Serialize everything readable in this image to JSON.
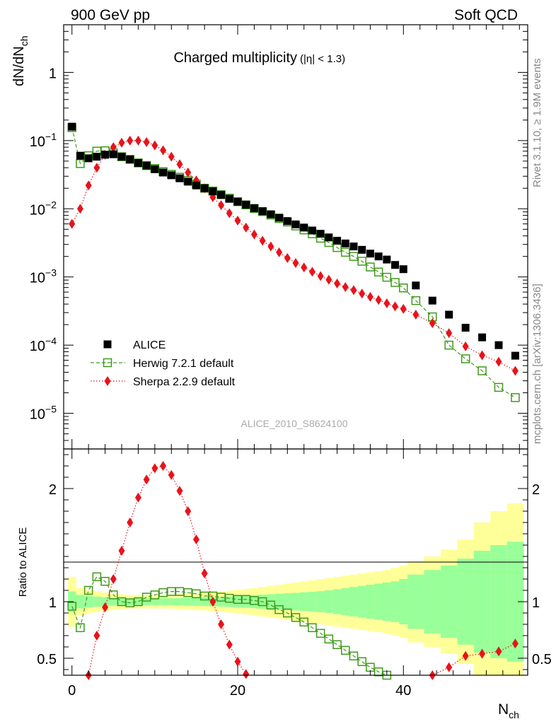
{
  "header": {
    "energy_label": "900 GeV pp",
    "process_label": "Soft QCD"
  },
  "side_labels": {
    "rivet": "Rivet 3.1.10, ≥ 1.9M events",
    "mcplots": "mcplots.cern.ch [arXiv:1306.3436]"
  },
  "chart_data": [
    {
      "type": "scatter",
      "panel": "main",
      "title": "Charged multiplicity",
      "title_cut": "(|η| < 1.3)",
      "ylabel": "dN/dN",
      "ylabel_sub": "ch",
      "yscale": "log",
      "ylim": [
        3e-06,
        5
      ],
      "xlim": [
        -1,
        55
      ],
      "y_tick_labels": [
        {
          "value": 1,
          "base": "1",
          "exp": ""
        },
        {
          "value": 0.1,
          "base": "10",
          "exp": "−1"
        },
        {
          "value": 0.01,
          "base": "10",
          "exp": "−2"
        },
        {
          "value": 0.001,
          "base": "10",
          "exp": "−3"
        },
        {
          "value": 0.0001,
          "base": "10",
          "exp": "−4"
        },
        {
          "value": 1e-05,
          "base": "10",
          "exp": "−5"
        }
      ],
      "watermark": "ALICE_2010_S8624100",
      "legend_position": "bottom-left",
      "series": [
        {
          "name": "ALICE",
          "color": "#000000",
          "marker": "filled-square",
          "x": [
            0,
            1,
            2,
            3,
            4,
            5,
            6,
            7,
            8,
            9,
            10,
            11,
            12,
            13,
            14,
            15,
            16,
            17,
            18,
            19,
            20,
            21,
            22,
            23,
            24,
            25,
            26,
            27,
            28,
            29,
            30,
            31,
            32,
            33,
            34,
            35,
            36,
            37,
            38,
            39,
            40,
            41.5,
            43.5,
            45.5,
            47.5,
            49.5,
            51.5,
            53.5
          ],
          "y": [
            0.16,
            0.06,
            0.055,
            0.058,
            0.062,
            0.063,
            0.058,
            0.053,
            0.047,
            0.043,
            0.038,
            0.034,
            0.031,
            0.028,
            0.025,
            0.022,
            0.02,
            0.018,
            0.016,
            0.014,
            0.0127,
            0.0115,
            0.0102,
            0.0092,
            0.0083,
            0.0074,
            0.0066,
            0.0059,
            0.0053,
            0.0048,
            0.0043,
            0.0038,
            0.0034,
            0.0031,
            0.0028,
            0.0025,
            0.0022,
            0.002,
            0.0018,
            0.0015,
            0.0013,
            0.00075,
            0.00045,
            0.00028,
            0.00018,
            0.00013,
            0.0001,
            7e-05
          ]
        },
        {
          "name": "Herwig 7.2.1 default",
          "color": "#3f9a1a",
          "marker": "open-square",
          "line": "dashed",
          "x": [
            0,
            1,
            2,
            3,
            4,
            5,
            6,
            7,
            8,
            9,
            10,
            11,
            12,
            13,
            14,
            15,
            16,
            17,
            18,
            19,
            20,
            21,
            22,
            23,
            24,
            25,
            26,
            27,
            28,
            29,
            30,
            31,
            32,
            33,
            34,
            35,
            36,
            37,
            38,
            39,
            40,
            41.5,
            43.5,
            45.5,
            47.5,
            49.5,
            51.5,
            53.5
          ],
          "y": [
            0.155,
            0.046,
            0.06,
            0.07,
            0.071,
            0.066,
            0.058,
            0.053,
            0.047,
            0.043,
            0.039,
            0.035,
            0.032,
            0.029,
            0.026,
            0.023,
            0.02,
            0.0182,
            0.0161,
            0.0143,
            0.0127,
            0.0114,
            0.0101,
            0.0091,
            0.0081,
            0.0072,
            0.0064,
            0.0056,
            0.0049,
            0.0043,
            0.0037,
            0.0032,
            0.0027,
            0.0023,
            0.002,
            0.0017,
            0.0014,
            0.00118,
            0.00099,
            0.00083,
            0.00069,
            0.00045,
            0.00026,
            0.0001,
            6.3e-05,
            4.2e-05,
            2.4e-05,
            1.7e-05
          ]
        },
        {
          "name": "Sherpa 2.2.9 default",
          "color": "#e8131a",
          "marker": "filled-diamond",
          "line": "dotted",
          "x": [
            0,
            1,
            2,
            3,
            4,
            5,
            6,
            7,
            8,
            9,
            10,
            11,
            12,
            13,
            14,
            15,
            16,
            17,
            18,
            19,
            20,
            21,
            22,
            23,
            24,
            25,
            26,
            27,
            28,
            29,
            30,
            31,
            32,
            33,
            34,
            35,
            36,
            37,
            38,
            39,
            40,
            41.5,
            43.5,
            45.5,
            47.5,
            49.5,
            51.5,
            53.5
          ],
          "y": [
            0.006,
            0.01,
            0.022,
            0.04,
            0.062,
            0.08,
            0.093,
            0.1,
            0.1,
            0.095,
            0.085,
            0.072,
            0.058,
            0.045,
            0.034,
            0.026,
            0.02,
            0.0148,
            0.0113,
            0.0086,
            0.0067,
            0.0053,
            0.0042,
            0.0034,
            0.0028,
            0.0023,
            0.0019,
            0.0016,
            0.00138,
            0.00119,
            0.00103,
            0.00091,
            0.0008,
            0.00071,
            0.00064,
            0.00057,
            0.00051,
            0.00046,
            0.00041,
            0.00037,
            0.00034,
            0.00028,
            0.00021,
            0.00015,
            9.6e-05,
            7.1e-05,
            5.7e-05,
            4.2e-05
          ]
        }
      ]
    },
    {
      "type": "scatter",
      "panel": "ratio",
      "ylabel": "Ratio to ALICE",
      "xlabel": "N",
      "xlabel_sub": "ch",
      "ylim": [
        0.35,
        2.35
      ],
      "xlim": [
        -1,
        55
      ],
      "x_ticks": [
        0,
        20,
        40
      ],
      "y_ticks": [
        0.5,
        1,
        2
      ],
      "bands": {
        "x_edges": [
          -0.5,
          0.5,
          1.5,
          2.5,
          3.5,
          4.5,
          5.5,
          6.5,
          7.5,
          8.5,
          9.5,
          10.5,
          11.5,
          12.5,
          13.5,
          14.5,
          15.5,
          16.5,
          17.5,
          18.5,
          19.5,
          20.5,
          21.5,
          22.5,
          23.5,
          24.5,
          25.5,
          26.5,
          27.5,
          28.5,
          29.5,
          30.5,
          31.5,
          32.5,
          33.5,
          34.5,
          35.5,
          36.5,
          37.5,
          38.5,
          39.5,
          40.5,
          42.5,
          44.5,
          46.5,
          48.5,
          50.5,
          52.5,
          54.5
        ],
        "inner_halfwidth": [
          0.09,
          0.06,
          0.05,
          0.045,
          0.04,
          0.035,
          0.032,
          0.03,
          0.03,
          0.03,
          0.03,
          0.03,
          0.03,
          0.032,
          0.034,
          0.036,
          0.038,
          0.04,
          0.043,
          0.046,
          0.05,
          0.054,
          0.058,
          0.062,
          0.066,
          0.07,
          0.074,
          0.078,
          0.083,
          0.088,
          0.093,
          0.1,
          0.11,
          0.12,
          0.13,
          0.14,
          0.15,
          0.16,
          0.17,
          0.18,
          0.2,
          0.24,
          0.28,
          0.32,
          0.38,
          0.45,
          0.5,
          0.53
        ],
        "outer_halfwidth": [
          0.22,
          0.12,
          0.1,
          0.09,
          0.08,
          0.07,
          0.065,
          0.06,
          0.06,
          0.06,
          0.06,
          0.06,
          0.062,
          0.066,
          0.07,
          0.074,
          0.078,
          0.083,
          0.09,
          0.097,
          0.105,
          0.113,
          0.12,
          0.13,
          0.14,
          0.15,
          0.16,
          0.17,
          0.18,
          0.19,
          0.2,
          0.21,
          0.22,
          0.23,
          0.24,
          0.25,
          0.26,
          0.27,
          0.28,
          0.3,
          0.32,
          0.36,
          0.4,
          0.46,
          0.55,
          0.7,
          0.8,
          0.87
        ]
      },
      "series": [
        {
          "name": "Herwig 7.2.1 default",
          "color": "#3f9a1a",
          "x": [
            0,
            1,
            2,
            3,
            4,
            5,
            6,
            7,
            8,
            9,
            10,
            11,
            12,
            13,
            14,
            15,
            16,
            17,
            18,
            19,
            20,
            21,
            22,
            23,
            24,
            25,
            26,
            27,
            28,
            29,
            30,
            31,
            32,
            33,
            34,
            35,
            36,
            37,
            38
          ],
          "y": [
            0.96,
            0.77,
            1.1,
            1.22,
            1.18,
            1.06,
            1.0,
            0.99,
            1.0,
            1.04,
            1.06,
            1.08,
            1.09,
            1.09,
            1.08,
            1.07,
            1.05,
            1.05,
            1.04,
            1.03,
            1.02,
            1.02,
            1.01,
            1.0,
            0.97,
            0.93,
            0.9,
            0.86,
            0.82,
            0.77,
            0.72,
            0.67,
            0.62,
            0.57,
            0.52,
            0.47,
            0.42,
            0.38,
            0.35
          ]
        },
        {
          "name": "Sherpa 2.2.9 default",
          "color": "#e8131a",
          "x": [
            2,
            3,
            4,
            5,
            6,
            7,
            8,
            9,
            10,
            11,
            12,
            13,
            14,
            15,
            16,
            17,
            18,
            19,
            20,
            21,
            43.5,
            45.5,
            47.5,
            49.5,
            51.5,
            53.5
          ],
          "y": [
            0.35,
            0.7,
            0.95,
            1.2,
            1.45,
            1.7,
            1.92,
            2.08,
            2.18,
            2.2,
            2.12,
            1.98,
            1.8,
            1.55,
            1.25,
            1.0,
            0.8,
            0.62,
            0.47,
            0.36,
            0.35,
            0.42,
            0.52,
            0.54,
            0.56,
            0.63
          ]
        }
      ]
    }
  ]
}
